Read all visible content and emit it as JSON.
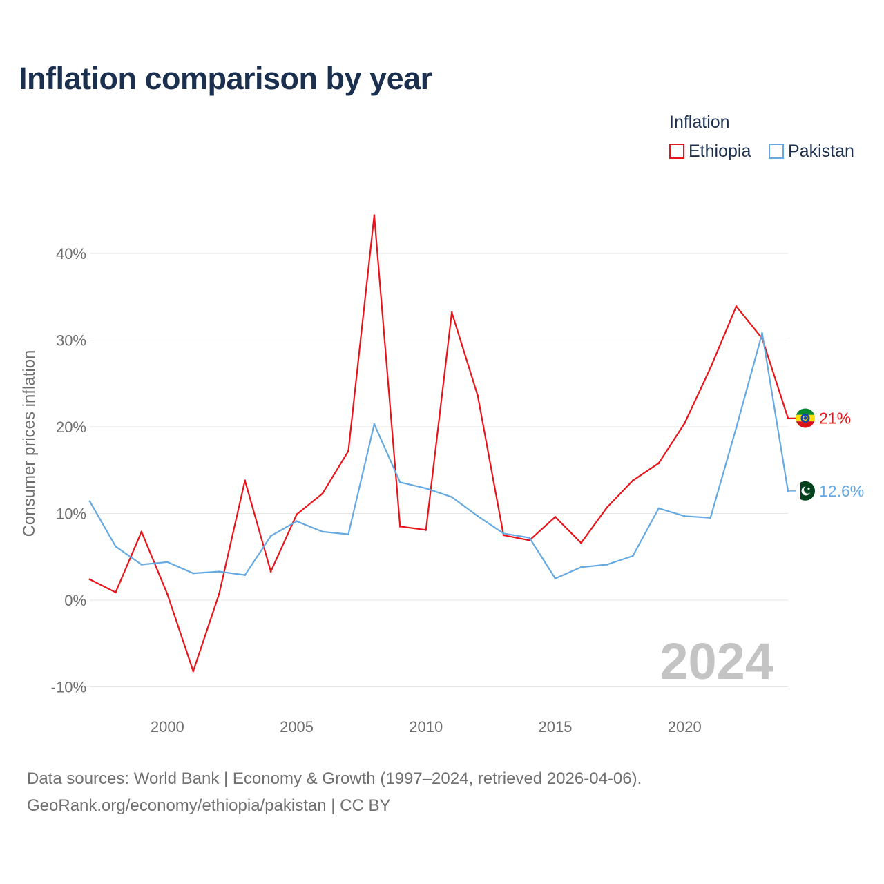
{
  "chart_data": {
    "type": "line",
    "title": "Inflation comparison by year",
    "ylabel": "Consumer prices inflation",
    "xlabel": "",
    "legend_title": "Inflation",
    "legend_position": "top-right",
    "year_badge": "2024",
    "xlim": [
      1997,
      2024
    ],
    "ylim": [
      -10,
      45
    ],
    "x_ticks": [
      2000,
      2005,
      2010,
      2015,
      2020
    ],
    "x_tick_labels": [
      "2000",
      "2005",
      "2010",
      "2015",
      "2020"
    ],
    "y_ticks": [
      -10,
      0,
      10,
      20,
      30,
      40
    ],
    "y_tick_labels": [
      "-10%",
      "0%",
      "10%",
      "20%",
      "30%",
      "40%"
    ],
    "grid": true,
    "x": [
      1997,
      1998,
      1999,
      2000,
      2001,
      2002,
      2003,
      2004,
      2005,
      2006,
      2007,
      2008,
      2009,
      2010,
      2011,
      2012,
      2013,
      2014,
      2015,
      2016,
      2017,
      2018,
      2019,
      2020,
      2021,
      2022,
      2023,
      2024
    ],
    "series": [
      {
        "name": "Ethiopia",
        "color": "#e8141a",
        "end_label": "21%",
        "flag_icon": "ethiopia-flag-icon",
        "values": [
          2.4,
          0.9,
          7.9,
          0.7,
          -8.2,
          0.7,
          13.8,
          3.3,
          9.9,
          12.3,
          17.2,
          44.4,
          8.5,
          8.1,
          33.2,
          23.6,
          7.5,
          6.9,
          9.6,
          6.6,
          10.7,
          13.8,
          15.8,
          20.4,
          26.8,
          33.9,
          30.2,
          21.0
        ]
      },
      {
        "name": "Pakistan",
        "color": "#65a9e2",
        "end_label": "12.6%",
        "flag_icon": "pakistan-flag-icon",
        "values": [
          11.4,
          6.2,
          4.1,
          4.4,
          3.1,
          3.3,
          2.9,
          7.4,
          9.1,
          7.9,
          7.6,
          20.3,
          13.6,
          12.9,
          11.9,
          9.7,
          7.7,
          7.2,
          2.5,
          3.8,
          4.1,
          5.1,
          10.6,
          9.7,
          9.5,
          19.9,
          30.8,
          12.6
        ]
      }
    ]
  },
  "footer": {
    "source_line1": "Data sources: World Bank | Economy & Growth (1997–2024, retrieved 2026-04-06).",
    "source_line2": "GeoRank.org/economy/ethiopia/pakistan | CC BY"
  }
}
